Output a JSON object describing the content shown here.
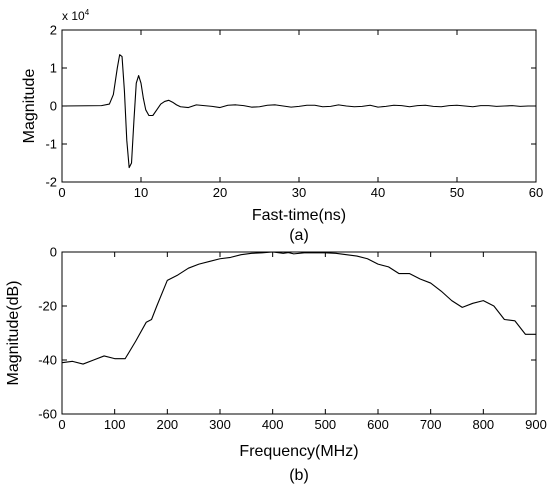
{
  "chart_data": [
    {
      "type": "line",
      "caption": "(a)",
      "xlabel": "Fast-time(ns)",
      "ylabel": "Magnitude",
      "y_exponent_label": "x 10",
      "y_exponent_power": "4",
      "xlim": [
        0,
        60
      ],
      "ylim": [
        -2,
        2
      ],
      "xticks": [
        0,
        10,
        20,
        30,
        40,
        50,
        60
      ],
      "yticks": [
        -2,
        -1,
        0,
        1,
        2
      ],
      "grid": false,
      "series": [
        {
          "x": [
            0,
            5,
            6,
            6.5,
            7,
            7.3,
            7.6,
            7.9,
            8.2,
            8.5,
            8.8,
            9.1,
            9.4,
            9.7,
            10,
            10.3,
            10.6,
            11,
            11.5,
            12,
            12.5,
            13,
            13.5,
            14,
            14.5,
            15,
            16,
            17,
            18,
            19,
            20,
            21,
            22,
            23,
            24,
            25,
            26,
            27,
            28,
            29,
            30,
            31,
            32,
            33,
            34,
            35,
            36,
            37,
            38,
            39,
            40,
            41,
            42,
            43,
            44,
            45,
            46,
            47,
            48,
            49,
            50,
            51,
            52,
            53,
            54,
            55,
            56,
            57,
            58,
            59,
            60
          ],
          "values": [
            0,
            0.01,
            0.05,
            0.3,
            1.0,
            1.35,
            1.3,
            0.4,
            -0.9,
            -1.62,
            -1.5,
            -0.4,
            0.6,
            0.8,
            0.6,
            0.2,
            -0.1,
            -0.25,
            -0.25,
            -0.1,
            0.05,
            0.12,
            0.15,
            0.1,
            0.03,
            -0.02,
            -0.04,
            0.03,
            0.01,
            -0.01,
            -0.04,
            0.02,
            0.03,
            0.01,
            -0.03,
            -0.02,
            0.02,
            0.03,
            0.0,
            -0.03,
            -0.01,
            0.02,
            0.02,
            -0.02,
            -0.01,
            0.03,
            0.0,
            -0.02,
            -0.01,
            0.02,
            -0.03,
            -0.01,
            0.02,
            0.01,
            -0.02,
            0.01,
            0.02,
            -0.01,
            -0.02,
            0.01,
            0.02,
            0.0,
            -0.02,
            0.01,
            0.01,
            -0.01,
            0.0,
            0.01,
            -0.01,
            0.0,
            0.0
          ]
        }
      ]
    },
    {
      "type": "line",
      "caption": "(b)",
      "xlabel": "Frequency(MHz)",
      "ylabel": "Magnitude(dB)",
      "xlim": [
        0,
        900
      ],
      "ylim": [
        -60,
        0
      ],
      "xticks": [
        0,
        100,
        200,
        300,
        400,
        500,
        600,
        700,
        800,
        900
      ],
      "yticks": [
        -60,
        -40,
        -20,
        0
      ],
      "grid": false,
      "series": [
        {
          "x": [
            0,
            20,
            40,
            60,
            80,
            100,
            120,
            140,
            160,
            170,
            180,
            200,
            220,
            240,
            260,
            280,
            300,
            320,
            340,
            360,
            380,
            400,
            420,
            430,
            440,
            460,
            480,
            500,
            520,
            540,
            560,
            580,
            600,
            620,
            640,
            660,
            680,
            700,
            720,
            740,
            760,
            780,
            800,
            820,
            840,
            860,
            880,
            900
          ],
          "values": [
            -41,
            -40.5,
            -41.5,
            -40,
            -38.5,
            -39.5,
            -39.5,
            -33,
            -26,
            -25,
            -20,
            -10.5,
            -8.5,
            -6,
            -4.5,
            -3.5,
            -2.5,
            -2,
            -1,
            -0.5,
            -0.3,
            0,
            -0.5,
            -0.2,
            -0.7,
            -0.3,
            -0.3,
            -0.3,
            -0.5,
            -1,
            -1.5,
            -2.5,
            -4.5,
            -5.5,
            -8,
            -8,
            -10,
            -11.5,
            -14.5,
            -18,
            -20.5,
            -19,
            -18,
            -20,
            -25,
            -25.5,
            -30.5,
            -30.5
          ]
        }
      ]
    }
  ]
}
